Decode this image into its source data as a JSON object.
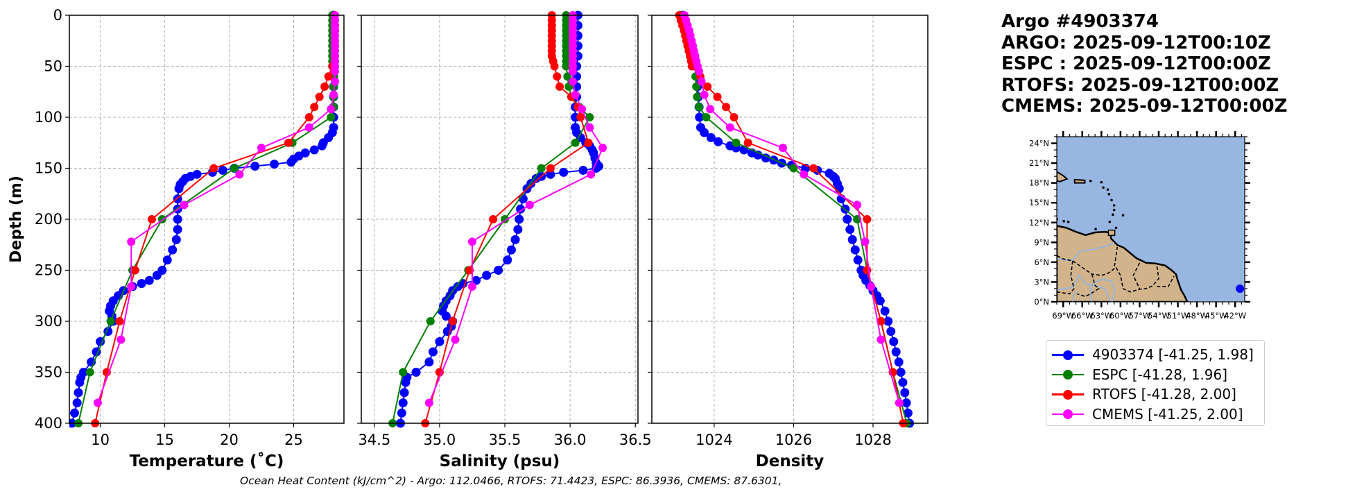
{
  "colors": {
    "argo": "#0000ff",
    "espc": "#008000",
    "rtofs": "#ff0000",
    "cmems": "#ff00ff",
    "ocean": "#97b6e1",
    "land": "#d2b48c",
    "river": "#9bb4d6",
    "grid": "#b0b0b0"
  },
  "info": {
    "lines": [
      "Argo #4903374",
      "ARGO: 2025-09-12T00:10Z",
      "ESPC : 2025-09-12T00:00Z",
      "RTOFS: 2025-09-12T00:00Z",
      "CMEMS: 2025-09-12T00:00Z"
    ]
  },
  "legend": {
    "items": [
      {
        "label": "4903374 [-41.25, 1.98]",
        "series": "argo"
      },
      {
        "label": "ESPC [-41.28, 1.96]",
        "series": "espc"
      },
      {
        "label": "RTOFS [-41.28, 2.00]",
        "series": "rtofs"
      },
      {
        "label": "CMEMS [-41.25, 2.00]",
        "series": "cmems"
      }
    ]
  },
  "footer": {
    "ohc_text": "Ocean Heat Content (kJ/cm^2) - Argo: 112.0466,  RTOFS: 71.4423,  ESPC: 86.3936,  CMEMS: 87.6301,"
  },
  "map": {
    "lat_ticks": [
      "24°N",
      "21°N",
      "18°N",
      "15°N",
      "12°N",
      "9°N",
      "6°N",
      "3°N",
      "0°N"
    ],
    "lon_ticks": [
      "69°W",
      "66°W",
      "63°W",
      "60°W",
      "57°W",
      "54°W",
      "51°W",
      "48°W",
      "45°W",
      "42°W"
    ],
    "lat_range": [
      0,
      25
    ],
    "lon_range": [
      -70,
      -40.5
    ],
    "float_position": {
      "lon": -41.25,
      "lat": 1.98
    }
  },
  "chart_data": [
    {
      "type": "line",
      "title": "",
      "xlabel": "Temperature (˚C)",
      "ylabel": "Depth (m)",
      "xlim": [
        7.6,
        28.9
      ],
      "ylim": [
        400,
        0
      ],
      "xticks": [
        "10",
        "15",
        "20",
        "25"
      ],
      "xtick_values": [
        10,
        15,
        20,
        25
      ],
      "yticks": [
        "0",
        "50",
        "100",
        "150",
        "200",
        "250",
        "300",
        "350",
        "400"
      ],
      "ytick_values": [
        0,
        50,
        100,
        150,
        200,
        250,
        300,
        350,
        400
      ],
      "grid": true,
      "series": [
        {
          "name": "4903374",
          "key": "argo",
          "depth": [
            0,
            10,
            20,
            30,
            40,
            50,
            60,
            70,
            80,
            90,
            100,
            110,
            115,
            120,
            125,
            128,
            132,
            135,
            138,
            141,
            144,
            146,
            148,
            150,
            152,
            154,
            156,
            158,
            160,
            163,
            166,
            170,
            180,
            190,
            200,
            210,
            220,
            230,
            240,
            250,
            255,
            260,
            263,
            266,
            270,
            275,
            280,
            285,
            290,
            295,
            300,
            310,
            320,
            330,
            340,
            350,
            355,
            360,
            370,
            380,
            390,
            400
          ],
          "x": [
            28.1,
            28.1,
            28.1,
            28.1,
            28.1,
            28.1,
            28.1,
            28.1,
            28.1,
            28.1,
            28.1,
            28.1,
            28.0,
            27.7,
            27.3,
            27.2,
            26.6,
            25.9,
            25.4,
            25.0,
            24.8,
            23.5,
            22.0,
            20.4,
            19.5,
            18.7,
            17.5,
            17.0,
            16.6,
            16.4,
            16.2,
            16.1,
            16.0,
            16.0,
            16.0,
            16.0,
            15.9,
            15.6,
            15.2,
            14.8,
            14.4,
            13.8,
            13.2,
            12.5,
            11.8,
            11.4,
            11.0,
            10.8,
            10.7,
            10.9,
            11.0,
            10.6,
            10.0,
            9.7,
            9.3,
            8.7,
            8.5,
            8.4,
            8.3,
            8.2,
            8.0,
            7.8
          ]
        },
        {
          "name": "ESPC",
          "key": "espc",
          "depth": [
            0,
            5,
            10,
            15,
            20,
            25,
            30,
            35,
            40,
            45,
            50,
            60,
            70,
            80,
            90,
            100,
            125,
            150,
            200,
            250,
            300,
            350,
            400
          ],
          "x": [
            28.0,
            28.0,
            28.0,
            28.0,
            28.0,
            28.0,
            28.0,
            28.0,
            28.0,
            28.0,
            28.0,
            28.1,
            28.1,
            28.1,
            28.1,
            27.9,
            24.9,
            20.4,
            14.8,
            12.5,
            10.8,
            9.2,
            8.3
          ]
        },
        {
          "name": "RTOFS",
          "key": "rtofs",
          "depth": [
            0,
            5,
            10,
            15,
            20,
            25,
            30,
            35,
            40,
            45,
            50,
            60,
            70,
            80,
            90,
            100,
            125,
            150,
            200,
            250,
            300,
            350,
            400
          ],
          "x": [
            28.2,
            28.2,
            28.2,
            28.2,
            28.2,
            28.2,
            28.2,
            28.2,
            28.2,
            28.2,
            28.0,
            27.7,
            27.4,
            27.0,
            26.6,
            26.2,
            24.6,
            18.8,
            14.0,
            12.7,
            11.5,
            10.5,
            9.6
          ]
        },
        {
          "name": "CMEMS",
          "key": "cmems",
          "depth": [
            0,
            5,
            10,
            15,
            20,
            25,
            30,
            35,
            40,
            45,
            50,
            55,
            65,
            78,
            92,
            110,
            130,
            156,
            186,
            222,
            266,
            318,
            380
          ],
          "x": [
            28.2,
            28.2,
            28.2,
            28.2,
            28.2,
            28.2,
            28.2,
            28.2,
            28.2,
            28.2,
            28.2,
            28.2,
            28.2,
            28.1,
            27.9,
            26.2,
            22.5,
            20.8,
            16.5,
            12.4,
            12.4,
            11.6,
            9.8
          ]
        }
      ]
    },
    {
      "type": "line",
      "title": "",
      "xlabel": "Salinity (psu)",
      "ylabel": "",
      "xlim": [
        34.4,
        36.52
      ],
      "ylim": [
        400,
        0
      ],
      "xticks": [
        "34.5",
        "35.0",
        "35.5",
        "36.0",
        "36.5"
      ],
      "xtick_values": [
        34.5,
        35.0,
        35.5,
        36.0,
        36.5
      ],
      "grid": true,
      "series": [
        {
          "name": "4903374",
          "key": "argo",
          "depth": [
            0,
            10,
            20,
            30,
            40,
            50,
            60,
            70,
            80,
            90,
            100,
            110,
            115,
            120,
            125,
            128,
            132,
            135,
            140,
            145,
            148,
            150,
            152,
            154,
            156,
            158,
            160,
            165,
            170,
            180,
            190,
            200,
            210,
            220,
            230,
            240,
            250,
            255,
            260,
            263,
            266,
            270,
            275,
            280,
            285,
            290,
            295,
            300,
            305,
            310,
            320,
            330,
            340,
            350,
            355,
            360,
            370,
            380,
            390,
            400
          ],
          "x": [
            36.06,
            36.06,
            36.06,
            36.06,
            36.06,
            36.05,
            36.05,
            36.05,
            36.05,
            36.04,
            36.04,
            36.04,
            36.05,
            36.08,
            36.12,
            36.15,
            36.17,
            36.18,
            36.19,
            36.2,
            36.22,
            36.2,
            36.1,
            35.95,
            35.85,
            35.78,
            35.74,
            35.7,
            35.67,
            35.64,
            35.62,
            35.61,
            35.6,
            35.58,
            35.55,
            35.52,
            35.45,
            35.36,
            35.28,
            35.18,
            35.14,
            35.1,
            35.08,
            35.05,
            35.03,
            35.02,
            35.05,
            35.1,
            35.09,
            35.06,
            35.0,
            34.95,
            34.92,
            34.82,
            34.75,
            34.74,
            34.73,
            34.72,
            34.71,
            34.7
          ]
        },
        {
          "name": "ESPC",
          "key": "espc",
          "depth": [
            0,
            5,
            10,
            15,
            20,
            25,
            30,
            35,
            40,
            45,
            50,
            60,
            70,
            80,
            90,
            100,
            125,
            150,
            200,
            250,
            300,
            350,
            400
          ],
          "x": [
            35.97,
            35.97,
            35.97,
            35.97,
            35.97,
            35.97,
            35.97,
            35.97,
            35.97,
            35.97,
            35.97,
            35.98,
            35.99,
            36.01,
            36.07,
            36.15,
            36.04,
            35.78,
            35.5,
            35.22,
            34.93,
            34.72,
            34.64
          ]
        },
        {
          "name": "RTOFS",
          "key": "rtofs",
          "depth": [
            0,
            5,
            10,
            15,
            20,
            25,
            30,
            35,
            40,
            45,
            50,
            60,
            70,
            80,
            90,
            100,
            125,
            150,
            200,
            250,
            300,
            350,
            400
          ],
          "x": [
            35.86,
            35.86,
            35.86,
            35.86,
            35.86,
            35.86,
            35.86,
            35.86,
            35.86,
            35.87,
            35.88,
            35.9,
            35.92,
            36.01,
            36.06,
            36.08,
            36.14,
            35.85,
            35.41,
            35.23,
            35.1,
            35.0,
            34.89
          ]
        },
        {
          "name": "CMEMS",
          "key": "cmems",
          "depth": [
            0,
            5,
            10,
            15,
            20,
            25,
            30,
            35,
            40,
            45,
            50,
            55,
            65,
            78,
            92,
            110,
            130,
            156,
            186,
            222,
            266,
            318,
            380
          ],
          "x": [
            36.02,
            36.02,
            36.02,
            36.02,
            36.02,
            36.02,
            36.02,
            36.02,
            36.02,
            36.02,
            36.02,
            36.02,
            36.02,
            36.04,
            36.09,
            36.15,
            36.25,
            36.16,
            35.69,
            35.25,
            35.25,
            35.12,
            34.92
          ]
        }
      ]
    },
    {
      "type": "line",
      "title": "",
      "xlabel": "Density",
      "ylabel": "",
      "xlim": [
        1022.43,
        1029.38
      ],
      "ylim": [
        400,
        0
      ],
      "xticks": [
        "1024",
        "1026",
        "1028"
      ],
      "xtick_values": [
        1024,
        1026,
        1028
      ],
      "grid": true,
      "series": [
        {
          "name": "4903374",
          "key": "argo",
          "depth": [
            0,
            10,
            20,
            30,
            40,
            50,
            60,
            70,
            80,
            90,
            100,
            110,
            115,
            120,
            124,
            128,
            130,
            132,
            135,
            137,
            140,
            142,
            145,
            147,
            150,
            152,
            155,
            158,
            160,
            165,
            170,
            180,
            190,
            200,
            210,
            220,
            230,
            240,
            250,
            255,
            260,
            265,
            270,
            275,
            280,
            290,
            300,
            310,
            320,
            330,
            340,
            350,
            360,
            370,
            380,
            390,
            400
          ],
          "x": [
            1023.2,
            1023.3,
            1023.38,
            1023.45,
            1023.5,
            1023.55,
            1023.57,
            1023.58,
            1023.6,
            1023.62,
            1023.63,
            1023.66,
            1023.75,
            1023.92,
            1024.1,
            1024.4,
            1024.55,
            1024.75,
            1024.95,
            1025.1,
            1025.3,
            1025.5,
            1025.7,
            1025.95,
            1026.3,
            1026.6,
            1026.9,
            1027.0,
            1027.05,
            1027.1,
            1027.15,
            1027.2,
            1027.3,
            1027.35,
            1027.42,
            1027.48,
            1027.55,
            1027.62,
            1027.7,
            1027.75,
            1027.82,
            1027.92,
            1028.0,
            1028.1,
            1028.18,
            1028.3,
            1028.38,
            1028.45,
            1028.52,
            1028.58,
            1028.65,
            1028.7,
            1028.75,
            1028.8,
            1028.84,
            1028.88,
            1028.92
          ]
        },
        {
          "name": "ESPC",
          "key": "espc",
          "depth": [
            0,
            5,
            10,
            15,
            20,
            25,
            30,
            35,
            40,
            45,
            50,
            60,
            70,
            80,
            90,
            100,
            125,
            150,
            200,
            250,
            300,
            350,
            400
          ],
          "x": [
            1023.2,
            1023.25,
            1023.3,
            1023.35,
            1023.4,
            1023.42,
            1023.44,
            1023.46,
            1023.48,
            1023.5,
            1023.52,
            1023.53,
            1023.55,
            1023.57,
            1023.62,
            1023.8,
            1024.55,
            1026.0,
            1027.6,
            1027.85,
            1028.2,
            1028.5,
            1028.85
          ]
        },
        {
          "name": "RTOFS",
          "key": "rtofs",
          "depth": [
            0,
            5,
            10,
            15,
            20,
            25,
            30,
            35,
            40,
            45,
            50,
            60,
            70,
            80,
            90,
            100,
            125,
            150,
            200,
            250,
            300,
            350,
            400
          ],
          "x": [
            1023.12,
            1023.16,
            1023.2,
            1023.24,
            1023.27,
            1023.3,
            1023.33,
            1023.36,
            1023.39,
            1023.42,
            1023.44,
            1023.65,
            1023.83,
            1024.08,
            1024.3,
            1024.5,
            1024.85,
            1026.5,
            1027.85,
            1027.85,
            1028.2,
            1028.5,
            1028.76
          ]
        },
        {
          "name": "CMEMS",
          "key": "cmems",
          "depth": [
            0,
            5,
            10,
            15,
            20,
            25,
            30,
            35,
            40,
            45,
            50,
            55,
            65,
            78,
            92,
            110,
            130,
            156,
            186,
            222,
            266,
            318,
            380
          ],
          "x": [
            1023.25,
            1023.29,
            1023.33,
            1023.37,
            1023.4,
            1023.43,
            1023.46,
            1023.49,
            1023.52,
            1023.55,
            1023.58,
            1023.62,
            1023.68,
            1023.75,
            1023.9,
            1024.4,
            1025.73,
            1026.26,
            1027.6,
            1027.8,
            1027.95,
            1028.2,
            1028.66
          ]
        }
      ]
    }
  ]
}
